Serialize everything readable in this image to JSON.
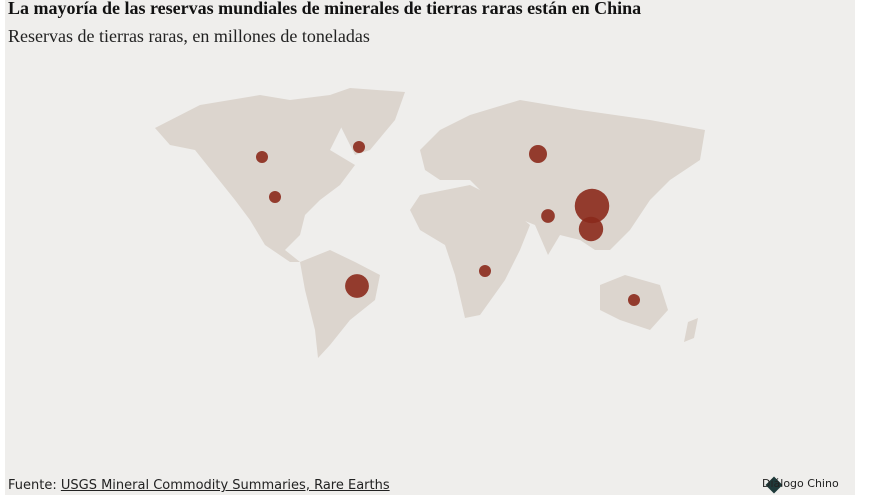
{
  "chart_data": {
    "type": "bubble-map",
    "title": "La mayoría de las reservas mundiales de minerales de tierras raras están en China",
    "subtitle": "Reservas de tierras raras, en millones de toneladas",
    "values": [
      0.83,
      1.5,
      1.4,
      21,
      0.89,
      12,
      6.9,
      44,
      22,
      4.1
    ],
    "color": "#8b2a1c",
    "source_label": "Fuente:",
    "source_link": "USGS Mineral Commodity Summaries, Rare Earths",
    "brand": "Diálogo Chino"
  }
}
